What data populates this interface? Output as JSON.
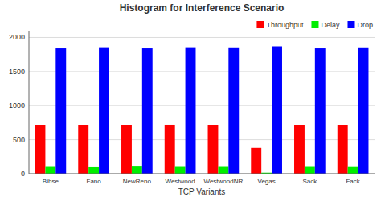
{
  "chart_data": {
    "type": "bar",
    "title": "Histogram for Interference Scenario",
    "xlabel": "TCP Variants",
    "categories": [
      "Bihse",
      "Fano",
      "NewReno",
      "Westwood",
      "WestwoodNR",
      "Vegas",
      "Sack",
      "Fack"
    ],
    "series": [
      {
        "name": "Throughput",
        "color": "#ff0000",
        "values": [
          710,
          710,
          710,
          720,
          715,
          380,
          710,
          710
        ]
      },
      {
        "name": "Delay",
        "color": "#00ee00",
        "values": [
          100,
          95,
          105,
          100,
          100,
          15,
          100,
          98
        ]
      },
      {
        "name": "Drop",
        "color": "#0000ff",
        "values": [
          1840,
          1845,
          1840,
          1845,
          1843,
          1870,
          1840,
          1843
        ]
      }
    ],
    "ylim": [
      0,
      2100
    ],
    "yticks": [
      0,
      500,
      1000,
      1500,
      2000
    ],
    "grid": true,
    "legend": "upper right"
  }
}
